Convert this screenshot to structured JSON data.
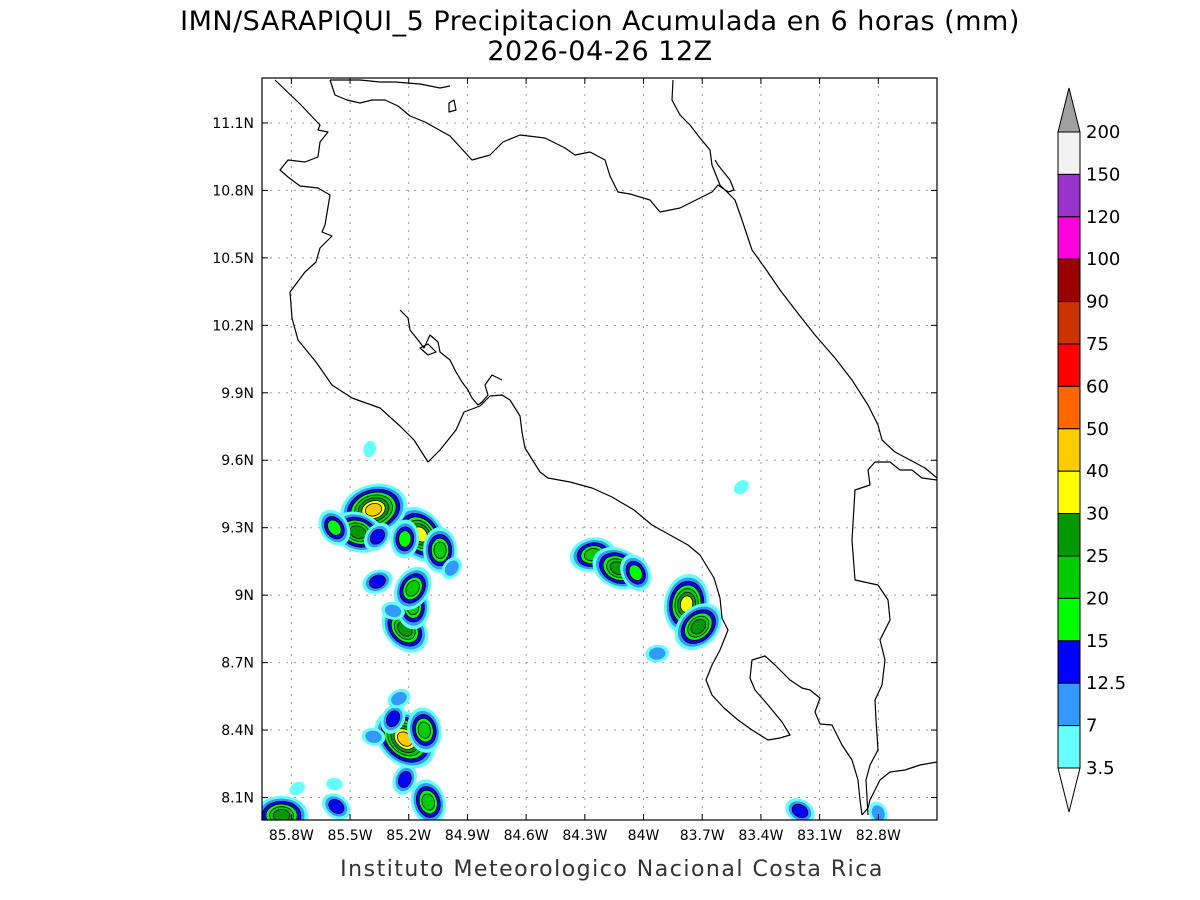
{
  "title": {
    "line1": "IMN/SARAPIQUI_5 Precipitacion Acumulada en 6 horas (mm)",
    "line2": "2026-04-26 12Z"
  },
  "footer": "Instituto Meteorologico Nacional Costa Rica",
  "axes": {
    "lon_ticks": [
      "85.8W",
      "85.5W",
      "85.2W",
      "84.9W",
      "84.6W",
      "84.3W",
      "84W",
      "83.7W",
      "83.4W",
      "83.1W",
      "82.8W"
    ],
    "lat_ticks": [
      "11.1N",
      "10.8N",
      "10.5N",
      "10.2N",
      "9.9N",
      "9.6N",
      "9.3N",
      "9N",
      "8.7N",
      "8.4N",
      "8.1N"
    ],
    "lon_values": [
      -85.8,
      -85.5,
      -85.2,
      -84.9,
      -84.6,
      -84.3,
      -84.0,
      -83.7,
      -83.4,
      -83.1,
      -82.8
    ],
    "lat_values": [
      11.1,
      10.8,
      10.5,
      10.2,
      9.9,
      9.6,
      9.3,
      9.0,
      8.7,
      8.4,
      8.1
    ],
    "lon_range": [
      -85.95,
      -82.5
    ],
    "lat_range": [
      8.0,
      11.3
    ],
    "grid": true
  },
  "colorbar": {
    "units": "mm",
    "levels": [
      "200",
      "150",
      "120",
      "100",
      "90",
      "75",
      "60",
      "50",
      "40",
      "30",
      "25",
      "20",
      "15",
      "12.5",
      "7",
      "3.5"
    ],
    "colors": [
      "#f2f2f2",
      "#9933cc",
      "#ff00dd",
      "#990000",
      "#cc3300",
      "#ff0000",
      "#ff6600",
      "#ffcc00",
      "#ffff00",
      "#009900",
      "#00cc00",
      "#00ff00",
      "#0000ff",
      "#3399ff",
      "#66ffff"
    ],
    "over_color": "#a0a0a0",
    "under_color": "#ffffff"
  },
  "precipitation_cells": [
    {
      "lon": -85.85,
      "lat": 8.02,
      "max_mm": 25
    },
    {
      "lon": -85.57,
      "lat": 8.06,
      "max_mm": 12.5
    },
    {
      "lon": -85.1,
      "lat": 8.08,
      "max_mm": 20
    },
    {
      "lon": -85.22,
      "lat": 8.18,
      "max_mm": 12.5
    },
    {
      "lon": -85.77,
      "lat": 8.14,
      "max_mm": 3.5
    },
    {
      "lon": -85.58,
      "lat": 8.16,
      "max_mm": 3.5
    },
    {
      "lon": -85.22,
      "lat": 8.36,
      "max_mm": 40
    },
    {
      "lon": -85.12,
      "lat": 8.4,
      "max_mm": 20
    },
    {
      "lon": -85.28,
      "lat": 8.45,
      "max_mm": 12.5
    },
    {
      "lon": -85.25,
      "lat": 8.54,
      "max_mm": 7
    },
    {
      "lon": -85.38,
      "lat": 8.37,
      "max_mm": 7
    },
    {
      "lon": -85.22,
      "lat": 8.85,
      "max_mm": 25
    },
    {
      "lon": -85.18,
      "lat": 8.95,
      "max_mm": 20
    },
    {
      "lon": -85.18,
      "lat": 9.03,
      "max_mm": 20
    },
    {
      "lon": -85.36,
      "lat": 9.06,
      "max_mm": 12.5
    },
    {
      "lon": -85.28,
      "lat": 8.93,
      "max_mm": 7
    },
    {
      "lon": -85.14,
      "lat": 9.27,
      "max_mm": 30
    },
    {
      "lon": -85.04,
      "lat": 9.2,
      "max_mm": 20
    },
    {
      "lon": -84.98,
      "lat": 9.12,
      "max_mm": 7
    },
    {
      "lon": -85.38,
      "lat": 9.38,
      "max_mm": 40
    },
    {
      "lon": -85.46,
      "lat": 9.28,
      "max_mm": 25
    },
    {
      "lon": -85.58,
      "lat": 9.3,
      "max_mm": 15
    },
    {
      "lon": -85.22,
      "lat": 9.25,
      "max_mm": 15
    },
    {
      "lon": -85.36,
      "lat": 9.26,
      "max_mm": 12.5
    },
    {
      "lon": -84.26,
      "lat": 9.18,
      "max_mm": 20
    },
    {
      "lon": -84.13,
      "lat": 9.12,
      "max_mm": 25
    },
    {
      "lon": -84.04,
      "lat": 9.1,
      "max_mm": 15
    },
    {
      "lon": -83.78,
      "lat": 8.96,
      "max_mm": 30
    },
    {
      "lon": -83.72,
      "lat": 8.86,
      "max_mm": 25
    },
    {
      "lon": -83.93,
      "lat": 8.74,
      "max_mm": 7
    },
    {
      "lon": -83.2,
      "lat": 8.04,
      "max_mm": 12.5
    },
    {
      "lon": -82.8,
      "lat": 8.03,
      "max_mm": 7
    },
    {
      "lon": -85.4,
      "lat": 9.65,
      "max_mm": 3.5
    },
    {
      "lon": -83.5,
      "lat": 9.48,
      "max_mm": 3.5
    }
  ]
}
